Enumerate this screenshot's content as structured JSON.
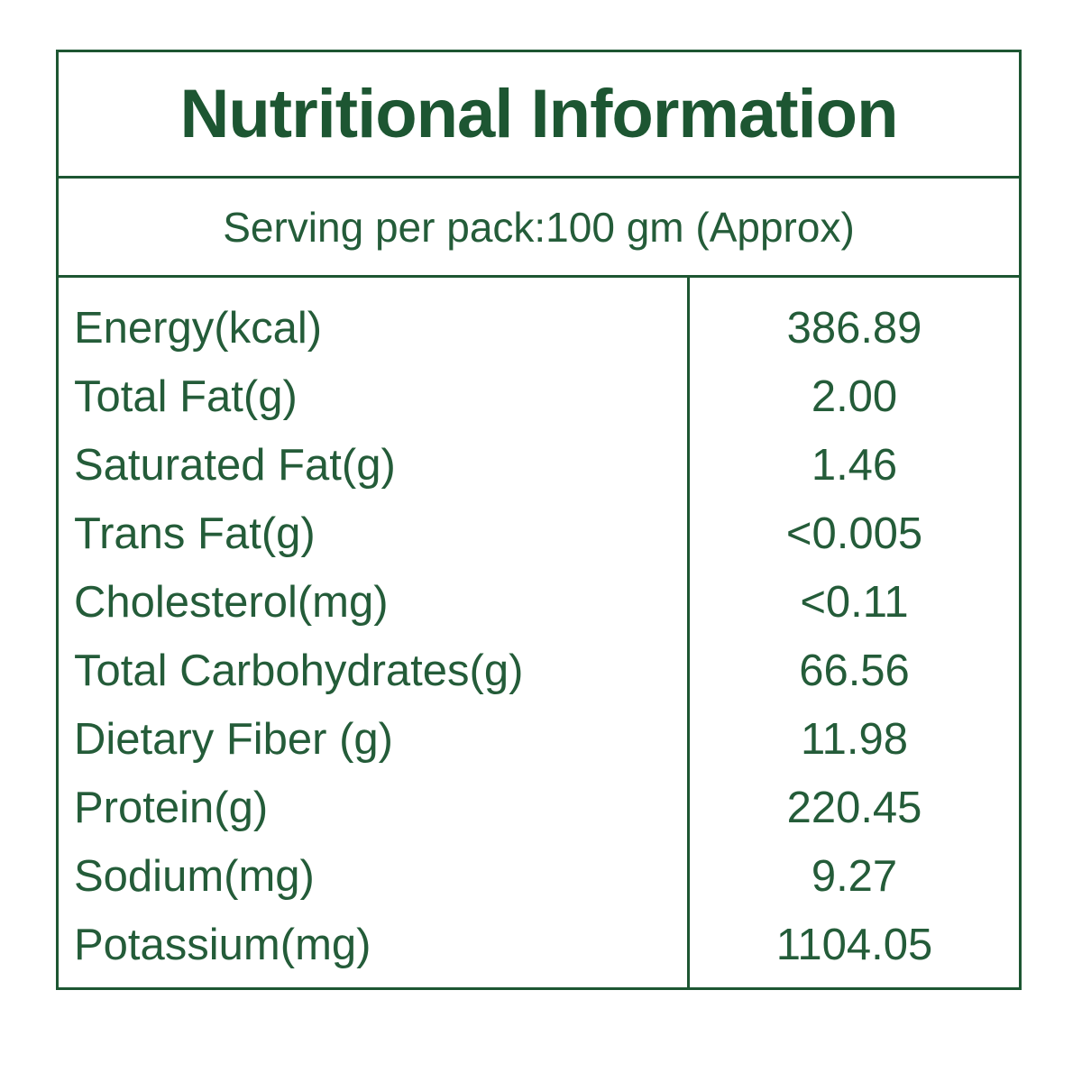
{
  "colors": {
    "text_green": "#245c39",
    "border_green": "#1d5632",
    "background": "#ffffff"
  },
  "label": {
    "title": "Nutritional Information",
    "serving_line": "Serving per pack:100 gm (Approx)",
    "rows": [
      {
        "label": "Energy(kcal)",
        "value": "386.89"
      },
      {
        "label": "Total Fat(g)",
        "value": "2.00"
      },
      {
        "label": "Saturated Fat(g)",
        "value": "1.46"
      },
      {
        "label": "Trans Fat(g)",
        "value": "<0.005"
      },
      {
        "label": "Cholesterol(mg)",
        "value": "<0.11"
      },
      {
        "label": "Total Carbohydrates(g)",
        "value": "66.56"
      },
      {
        "label": "Dietary Fiber (g)",
        "value": "11.98"
      },
      {
        "label": "Protein(g)",
        "value": "220.45"
      },
      {
        "label": "Sodium(mg)",
        "value": "9.27"
      },
      {
        "label": "Potassium(mg)",
        "value": "1104.05"
      }
    ]
  }
}
